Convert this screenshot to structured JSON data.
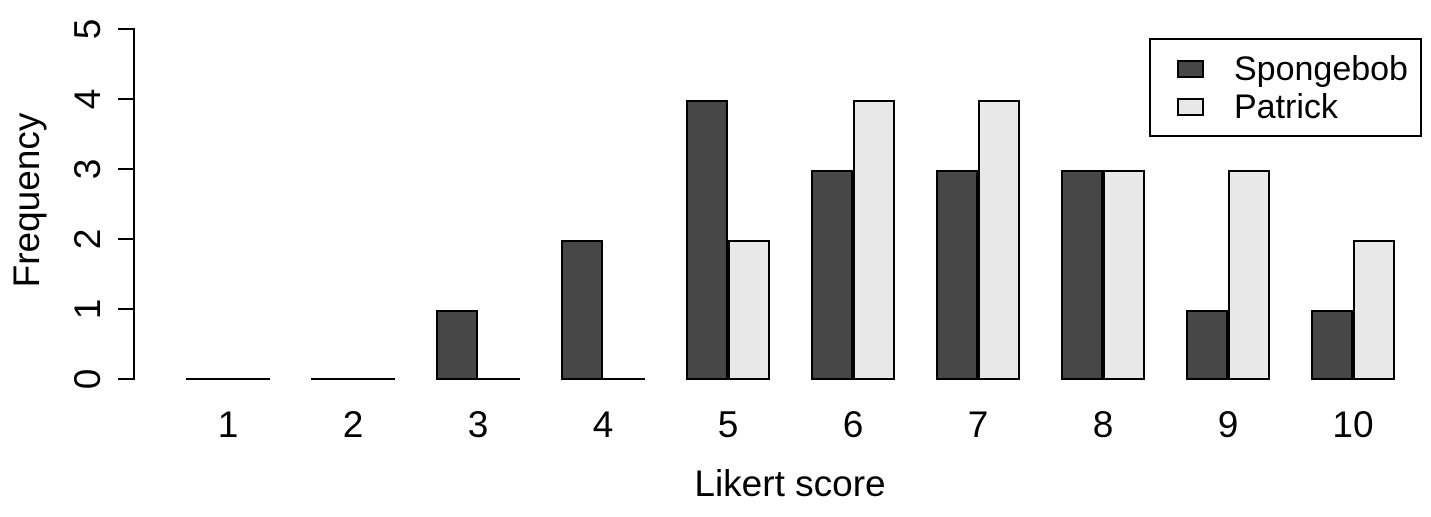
{
  "chart_data": {
    "type": "bar",
    "subtype": "grouped",
    "title": "",
    "xlabel": "Likert score",
    "ylabel": "Frequency",
    "categories": [
      "1",
      "2",
      "3",
      "4",
      "5",
      "6",
      "7",
      "8",
      "9",
      "10"
    ],
    "series": [
      {
        "name": "Spongebob",
        "color": "#474747",
        "values": [
          0,
          0,
          1,
          2,
          4,
          3,
          3,
          3,
          1,
          1
        ]
      },
      {
        "name": "Patrick",
        "color": "#e8e8e8",
        "values": [
          0,
          0,
          0,
          0,
          2,
          4,
          4,
          3,
          3,
          2
        ]
      }
    ],
    "ylim": [
      0,
      5
    ],
    "yticks": [
      0,
      1,
      2,
      3,
      4,
      5
    ],
    "grid": false,
    "legend_position": "top-right",
    "axis_color": "#000000",
    "background_color": "#ffffff"
  }
}
